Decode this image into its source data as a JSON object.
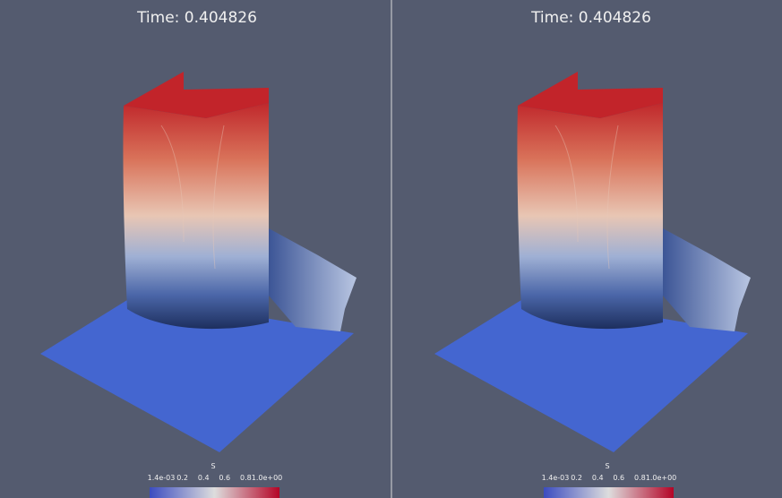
{
  "panels": [
    {
      "title": "Time: 0.404826",
      "colorbar": {
        "label": "S",
        "ticks": [
          "1.4e-03",
          "0.2",
          "0.4",
          "0.6",
          "0.8",
          "1.0e+00"
        ]
      }
    },
    {
      "title": "Time: 0.404826",
      "colorbar": {
        "label": "S",
        "ticks": [
          "1.4e-03",
          "0.2",
          "0.4",
          "0.6",
          "0.8",
          "1.0e+00"
        ]
      }
    }
  ]
}
